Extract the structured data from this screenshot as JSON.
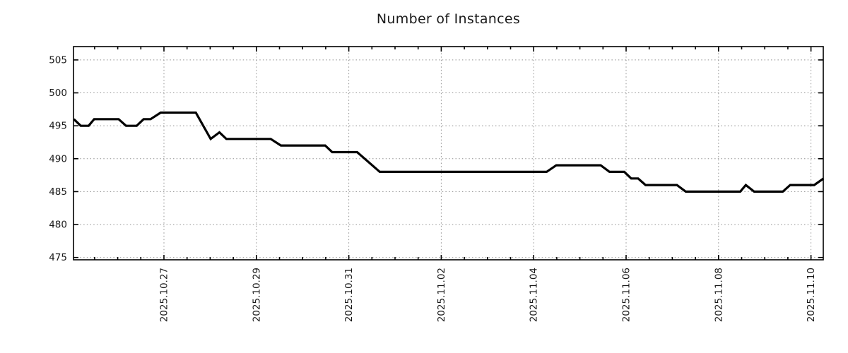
{
  "title": "Number of Instances",
  "colors": {
    "background": "#ffffff",
    "line": "#000000",
    "grid": "#909090",
    "axis": "#000000",
    "text": "#1a1a1a"
  },
  "chart_data": {
    "type": "line",
    "title": "Number of Instances",
    "legend": false,
    "grid": true,
    "x_axis": {
      "kind": "time",
      "day_zero_date": "2025.10.25",
      "range_days": [
        0.05,
        16.27
      ],
      "major_tick_days": [
        2,
        4,
        6,
        8,
        10,
        12,
        14,
        16
      ],
      "major_tick_labels": [
        "2025.10.27",
        "2025.10.29",
        "2025.10.31",
        "2025.11.02",
        "2025.11.04",
        "2025.11.06",
        "2025.11.08",
        "2025.11.10"
      ],
      "minor_tick_interval_days": 0.5
    },
    "y_axis": {
      "ticks": [
        475,
        480,
        485,
        490,
        495,
        500,
        505
      ],
      "range": [
        474.7,
        507.0
      ]
    },
    "series": [
      {
        "name": "instances",
        "color": "#000000",
        "points": [
          [
            0.05,
            496
          ],
          [
            0.2,
            495
          ],
          [
            0.37,
            495
          ],
          [
            0.49,
            496
          ],
          [
            1.02,
            496
          ],
          [
            1.18,
            495
          ],
          [
            1.41,
            495
          ],
          [
            1.56,
            496
          ],
          [
            1.71,
            496
          ],
          [
            1.93,
            497
          ],
          [
            2.69,
            497
          ],
          [
            3.01,
            493
          ],
          [
            3.2,
            494
          ],
          [
            3.35,
            493
          ],
          [
            4.31,
            493
          ],
          [
            4.53,
            492
          ],
          [
            5.49,
            492
          ],
          [
            5.64,
            491
          ],
          [
            6.18,
            491
          ],
          [
            6.67,
            488
          ],
          [
            10.28,
            488
          ],
          [
            10.49,
            489
          ],
          [
            11.45,
            489
          ],
          [
            11.64,
            488
          ],
          [
            11.96,
            488
          ],
          [
            12.11,
            487
          ],
          [
            12.26,
            487
          ],
          [
            12.42,
            486
          ],
          [
            13.1,
            486
          ],
          [
            13.29,
            485
          ],
          [
            14.47,
            485
          ],
          [
            14.59,
            486
          ],
          [
            14.77,
            485
          ],
          [
            15.39,
            485
          ],
          [
            15.55,
            486
          ],
          [
            16.07,
            486
          ],
          [
            16.27,
            487
          ]
        ]
      }
    ]
  }
}
